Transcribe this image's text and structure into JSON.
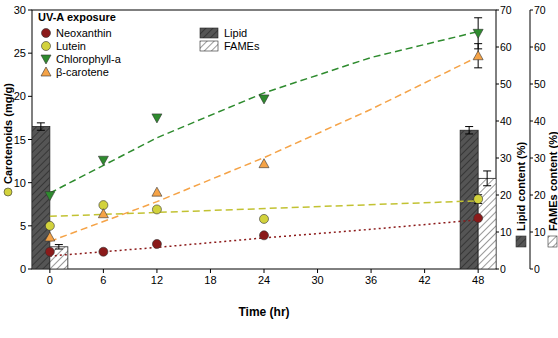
{
  "chart_data": {
    "type": "scatter",
    "legend_title": "UV-A exposure",
    "x_label": "Time (hr)",
    "y_label": "Carotenoids (mg/g)",
    "y2_label": "Lipid content (%)",
    "y3_label": "FAMEs content (%)",
    "xlim": [
      -2,
      50
    ],
    "xticks": [
      0,
      6,
      12,
      18,
      24,
      30,
      36,
      42,
      48
    ],
    "ylim": [
      0,
      30
    ],
    "yticks": [
      0,
      5,
      10,
      15,
      20,
      25,
      30
    ],
    "y2lim": [
      0,
      70
    ],
    "y2ticks": [
      0,
      10,
      20,
      30,
      40,
      50,
      60,
      70
    ],
    "y3lim": [
      0,
      70
    ],
    "y3ticks": [
      0,
      10,
      20,
      30,
      40,
      50,
      60,
      70
    ],
    "legend": "upper left",
    "series": [
      {
        "name": "Neoxanthin",
        "type": "scatter",
        "marker": "circle",
        "color": "#8b1a1a",
        "x": [
          0,
          6,
          12,
          24,
          48
        ],
        "values": [
          2.0,
          2.0,
          2.9,
          3.9,
          5.9
        ],
        "errors": [
          null,
          null,
          null,
          null,
          null
        ]
      },
      {
        "name": "Lutein",
        "type": "scatter",
        "marker": "circle",
        "color": "#d2d23c",
        "x": [
          0,
          6,
          12,
          24,
          48
        ],
        "values": [
          5.0,
          7.4,
          6.9,
          5.8,
          8.1
        ],
        "errors": [
          null,
          null,
          null,
          null,
          0.5
        ]
      },
      {
        "name": "Chlorophyll-a",
        "type": "scatter",
        "marker": "triangle-down",
        "color": "#2e8b2e",
        "x": [
          0,
          6,
          12,
          24,
          48
        ],
        "values": [
          8.5,
          12.6,
          17.5,
          19.7,
          27.3
        ],
        "errors": [
          null,
          null,
          null,
          null,
          1.8
        ]
      },
      {
        "name": "β-carotene",
        "type": "scatter",
        "marker": "triangle-up",
        "color": "#f5a347",
        "x": [
          0,
          6,
          12,
          24,
          48
        ],
        "values": [
          3.7,
          6.4,
          8.9,
          12.2,
          24.7
        ],
        "errors": [
          null,
          null,
          null,
          null,
          1.4
        ]
      },
      {
        "type": "line",
        "line_style": "dotted",
        "color": "#8b1a1a",
        "x": [
          0,
          12,
          24,
          36,
          48
        ],
        "values": [
          1.5,
          2.5,
          3.6,
          4.6,
          5.7
        ]
      },
      {
        "type": "line",
        "line_style": "dashed",
        "color": "#c2c232",
        "x": [
          0,
          48
        ],
        "values": [
          6.1,
          7.9
        ]
      },
      {
        "type": "line",
        "line_style": "dashed",
        "color": "#2e8b2e",
        "x": [
          0,
          12,
          24,
          36,
          48
        ],
        "values": [
          8.8,
          15.2,
          20.4,
          24.5,
          27.5
        ]
      },
      {
        "type": "line",
        "line_style": "dashed",
        "color": "#f5a347",
        "x": [
          0,
          12,
          24,
          36,
          48
        ],
        "values": [
          3.2,
          7.8,
          12.9,
          18.5,
          24.6
        ]
      },
      {
        "name": "Lipid",
        "type": "bar",
        "color": "#555555",
        "axis": "y2",
        "x": [
          0,
          48
        ],
        "values": [
          38.5,
          37.5
        ],
        "errors": [
          1.0,
          1.0
        ]
      },
      {
        "name": "FAMEs",
        "type": "bar",
        "color": "#ffffff",
        "axis": "y3",
        "x": [
          0,
          48
        ],
        "values": [
          6.0,
          24.5
        ],
        "errors": [
          0.6,
          2.0
        ]
      }
    ]
  }
}
